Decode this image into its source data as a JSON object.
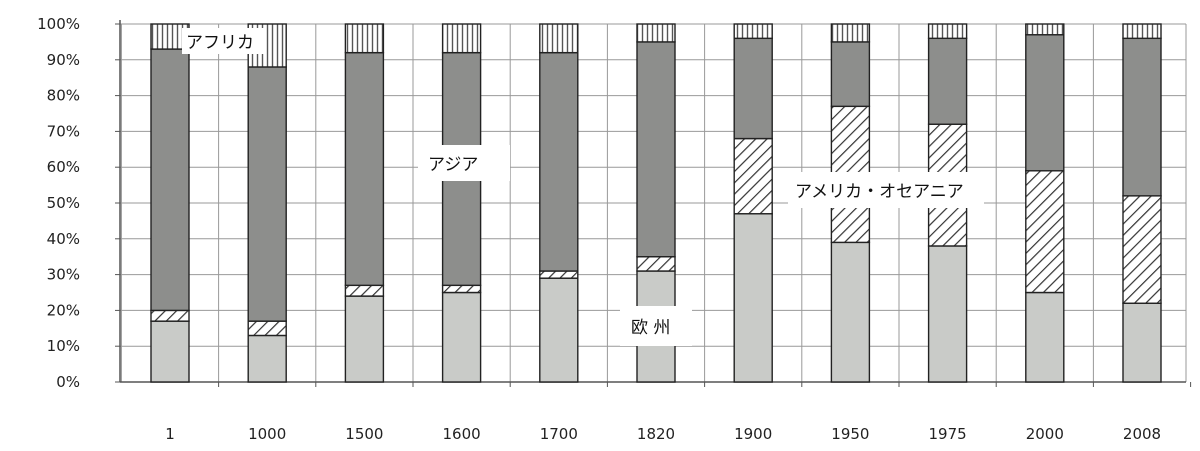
{
  "chart_data": {
    "type": "bar",
    "stacked": true,
    "categories": [
      "1",
      "1000",
      "1500",
      "1600",
      "1700",
      "1820",
      "1900",
      "1950",
      "1975",
      "2000",
      "2008"
    ],
    "y_tick_labels": [
      "0%",
      "10%",
      "20%",
      "30%",
      "40%",
      "50%",
      "60%",
      "70%",
      "80%",
      "90%",
      "100%"
    ],
    "ylim": [
      0,
      100
    ],
    "grid": true,
    "series": [
      {
        "name": "欧 州",
        "fill": "light-gray",
        "values": [
          17,
          13,
          24,
          25,
          29,
          31,
          47,
          39,
          38,
          25,
          22
        ]
      },
      {
        "name": "アメリカ・オセアニア",
        "fill": "hatched",
        "values": [
          3,
          4,
          3,
          2,
          2,
          4,
          21,
          38,
          34,
          34,
          30
        ]
      },
      {
        "name": "アジア",
        "fill": "dark-gray",
        "values": [
          73,
          71,
          65,
          65,
          61,
          60,
          28,
          18,
          24,
          38,
          44
        ]
      },
      {
        "name": "アフリカ",
        "fill": "vertical-stripes",
        "values": [
          7,
          12,
          8,
          8,
          8,
          5,
          4,
          5,
          4,
          3,
          4
        ]
      }
    ],
    "colors": {
      "light_gray": "#c9cbc8",
      "dark_gray": "#8d8e8c",
      "hatch_line": "#333333",
      "stripe_line": "#555555",
      "outline": "#222222",
      "grid": "#999999"
    }
  }
}
